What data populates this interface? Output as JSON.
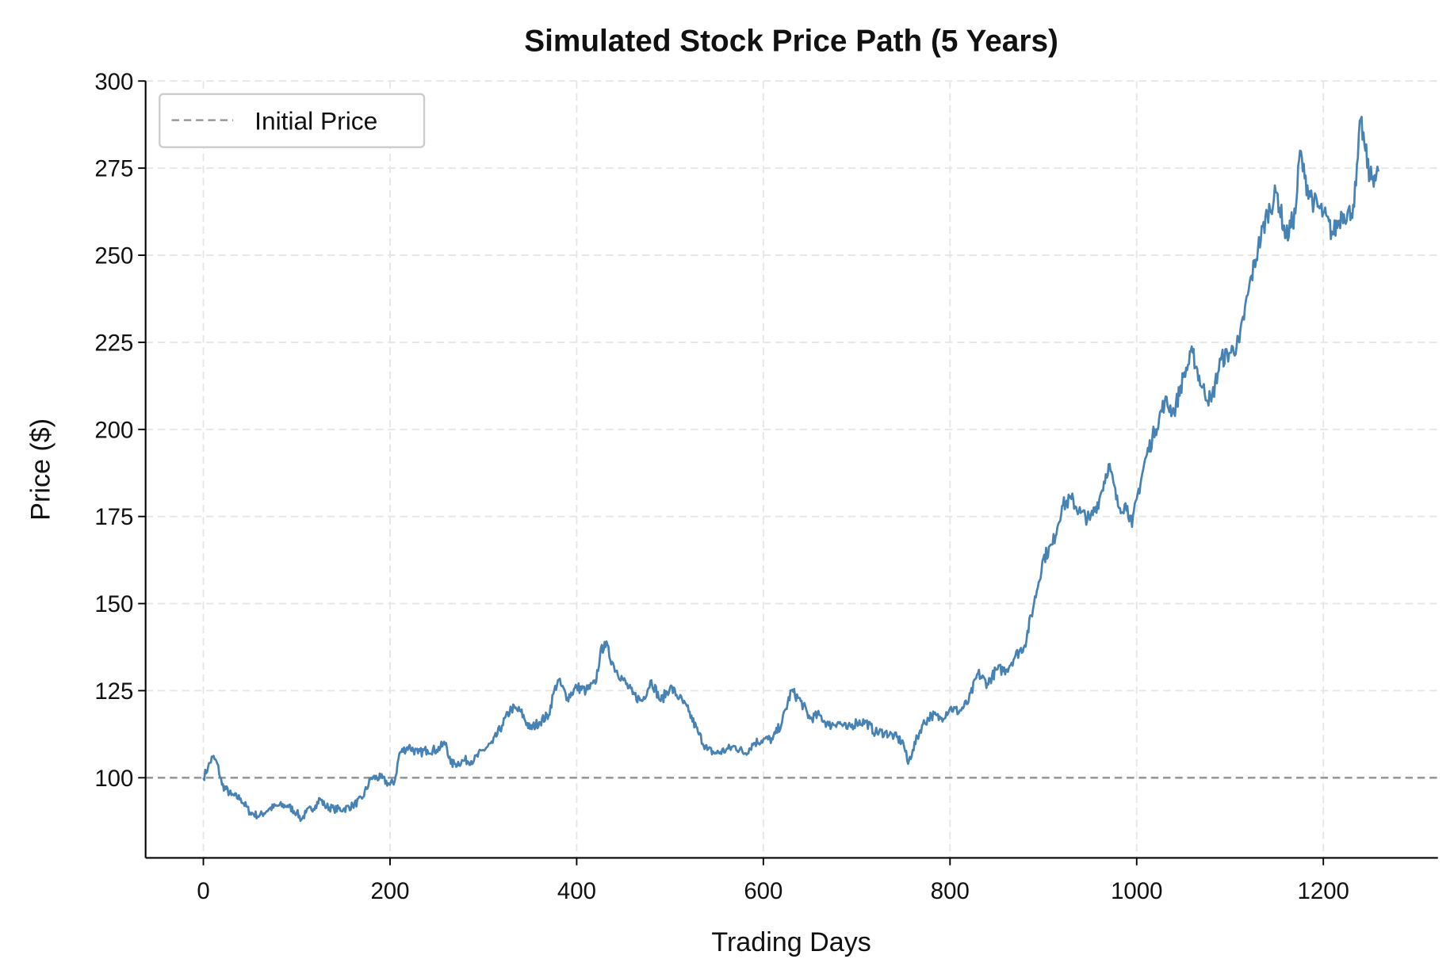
{
  "chart_data": {
    "type": "line",
    "title": "Simulated Stock Price Path (5 Years)",
    "xlabel": "Trading Days",
    "ylabel": "Price ($)",
    "xlim": [
      -62,
      1323
    ],
    "ylim": [
      77,
      300
    ],
    "xticks": [
      0,
      200,
      400,
      600,
      800,
      1000,
      1200
    ],
    "yticks": [
      100,
      125,
      150,
      175,
      200,
      225,
      250,
      275,
      300
    ],
    "grid": true,
    "legend_placement": "top-left",
    "series": [
      {
        "color": "#4682b4",
        "x": [
          0,
          5,
          10,
          15,
          20,
          30,
          40,
          50,
          60,
          70,
          80,
          90,
          100,
          105,
          110,
          120,
          125,
          130,
          140,
          150,
          160,
          170,
          180,
          190,
          200,
          205,
          210,
          220,
          230,
          240,
          250,
          260,
          265,
          270,
          280,
          290,
          300,
          310,
          320,
          330,
          340,
          350,
          360,
          370,
          375,
          380,
          390,
          400,
          410,
          420,
          425,
          430,
          440,
          450,
          460,
          470,
          480,
          490,
          500,
          510,
          520,
          530,
          540,
          550,
          560,
          570,
          580,
          590,
          600,
          610,
          620,
          630,
          640,
          650,
          660,
          670,
          680,
          690,
          700,
          710,
          720,
          730,
          740,
          750,
          755,
          760,
          770,
          780,
          790,
          800,
          810,
          820,
          830,
          840,
          850,
          860,
          870,
          880,
          890,
          900,
          910,
          920,
          930,
          940,
          950,
          960,
          970,
          980,
          990,
          995,
          1000,
          1010,
          1020,
          1030,
          1040,
          1050,
          1060,
          1070,
          1080,
          1090,
          1100,
          1110,
          1120,
          1130,
          1140,
          1150,
          1160,
          1170,
          1175,
          1180,
          1190,
          1200,
          1210,
          1220,
          1230,
          1235,
          1240,
          1245,
          1250,
          1255,
          1259
        ],
        "y": [
          100,
          103,
          106,
          104,
          98,
          95,
          94,
          90,
          89,
          91,
          92,
          92,
          90,
          88,
          90,
          92,
          94,
          92,
          91,
          91,
          92,
          94,
          100,
          100,
          98,
          99,
          107,
          109,
          107,
          108,
          108,
          110,
          104,
          104,
          105,
          105,
          108,
          110,
          115,
          120,
          119,
          114,
          116,
          118,
          124,
          128,
          123,
          126,
          125,
          127,
          135,
          139,
          132,
          128,
          124,
          122,
          128,
          122,
          126,
          123,
          119,
          113,
          108,
          107,
          108,
          109,
          107,
          110,
          111,
          111,
          116,
          125,
          122,
          117,
          118,
          115,
          116,
          114,
          116,
          116,
          113,
          113,
          112,
          110,
          104,
          108,
          115,
          118,
          117,
          120,
          119,
          122,
          130,
          127,
          131,
          131,
          135,
          138,
          150,
          163,
          167,
          178,
          180,
          176,
          174,
          180,
          190,
          178,
          178,
          172,
          180,
          192,
          200,
          208,
          205,
          215,
          222,
          212,
          208,
          220,
          222,
          225,
          240,
          252,
          262,
          268,
          255,
          262,
          280,
          272,
          265,
          262,
          256,
          262,
          262,
          270,
          289,
          280,
          272,
          273,
          274
        ]
      },
      {
        "name": "Initial Price",
        "type": "hline",
        "y": 100,
        "color": "#999999",
        "style": "dashed"
      }
    ]
  }
}
